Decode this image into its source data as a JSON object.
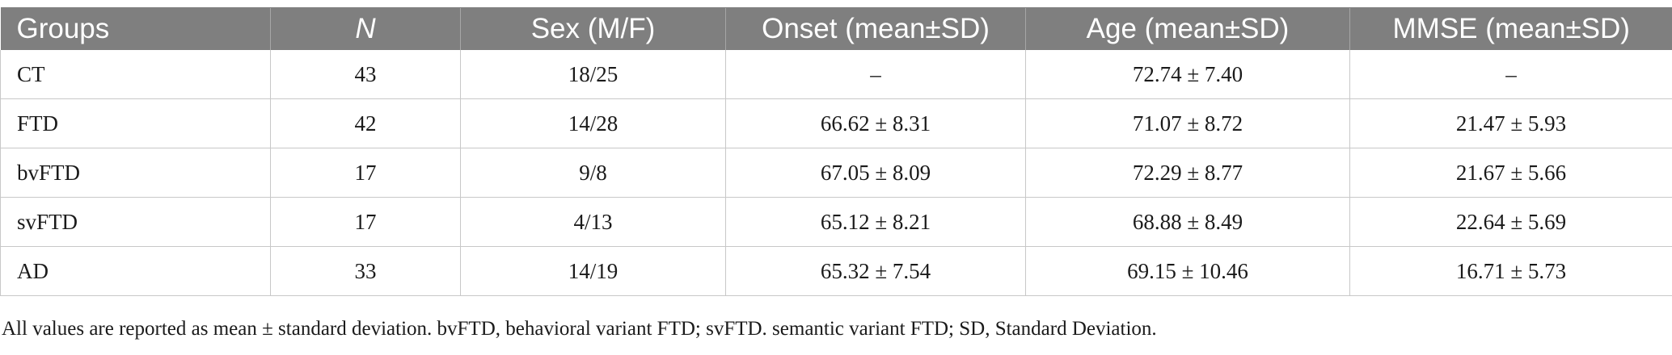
{
  "table": {
    "headers": [
      "Groups",
      "N",
      "Sex (M/F)",
      "Onset (mean±SD)",
      "Age (mean±SD)",
      "MMSE (mean±SD)"
    ],
    "rows": [
      [
        "CT",
        "43",
        "18/25",
        "–",
        "72.74 ± 7.40",
        "–"
      ],
      [
        "FTD",
        "42",
        "14/28",
        "66.62 ± 8.31",
        "71.07 ± 8.72",
        "21.47 ± 5.93"
      ],
      [
        "bvFTD",
        "17",
        "9/8",
        "67.05 ± 8.09",
        "72.29 ± 8.77",
        "21.67 ± 5.66"
      ],
      [
        "svFTD",
        "17",
        "4/13",
        "65.12 ± 8.21",
        "68.88 ± 8.49",
        "22.64 ± 5.69"
      ],
      [
        "AD",
        "33",
        "14/19",
        "65.32 ± 7.54",
        "69.15 ± 10.46",
        "16.71 ± 5.73"
      ]
    ]
  },
  "footnote": "All values are reported as mean ± standard deviation. bvFTD, behavioral variant FTD; svFTD. semantic variant FTD; SD, Standard Deviation.",
  "colors": {
    "header_bg": "#7f7f7f",
    "header_text": "#ffffff",
    "grid": "#c8c8c8"
  }
}
